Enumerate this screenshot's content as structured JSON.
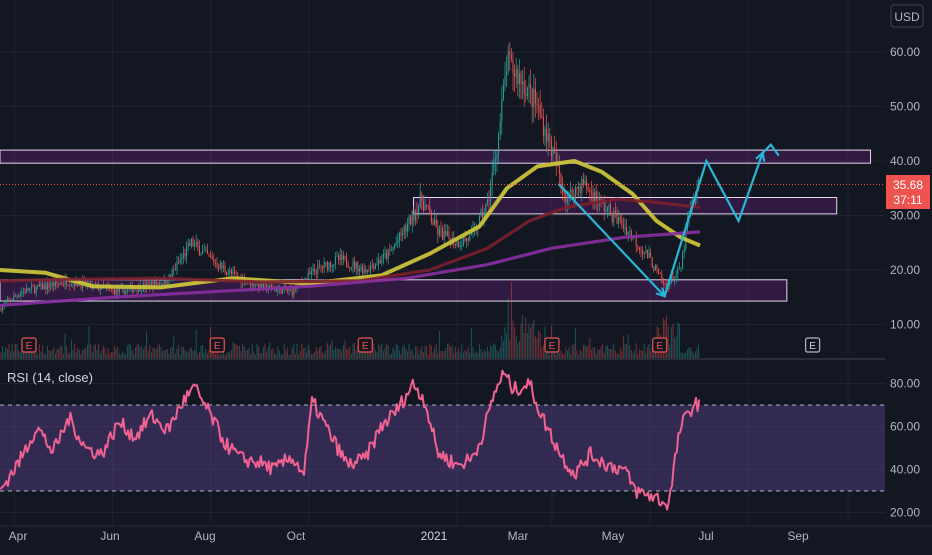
{
  "currency_label": "USD",
  "last_price": "35.68",
  "countdown": "37:11",
  "rsi_label": "RSI (14, close)",
  "earnings_marker": "E",
  "colors": {
    "background": "#131722",
    "up": "#26a69a",
    "down": "#ef5350",
    "zone_border": "#e8d8f0",
    "zone_fill": "rgba(156,39,176,0.22)",
    "ma_yellow": "#c9c23a",
    "ma_darkred": "#7a1f2e",
    "ma_purple": "#8a2fa0",
    "arrow": "#29b6d6",
    "rsi_line": "#f06292",
    "rsi_band": "rgba(126,87,194,0.30)",
    "axis_text": "#b2b5be"
  },
  "chart_data": [
    {
      "type": "candlestick",
      "ylabel": "USD",
      "ylim": [
        5,
        68
      ],
      "y_ticks": [
        "10.00",
        "20.00",
        "30.00",
        "40.00",
        "50.00",
        "60.00"
      ],
      "x_ticks": [
        "Apr",
        "Jun",
        "Aug",
        "Oct",
        "2021",
        "Mar",
        "May",
        "Jul",
        "Sep"
      ],
      "price_points": [
        [
          "2020-03-23",
          13
        ],
        [
          "2020-04-05",
          16
        ],
        [
          "2020-04-20",
          17
        ],
        [
          "2020-05-05",
          18
        ],
        [
          "2020-05-20",
          17
        ],
        [
          "2020-06-05",
          16
        ],
        [
          "2020-06-20",
          17
        ],
        [
          "2020-07-05",
          18
        ],
        [
          "2020-07-20",
          25
        ],
        [
          "2020-08-01",
          22
        ],
        [
          "2020-08-15",
          19
        ],
        [
          "2020-09-01",
          17
        ],
        [
          "2020-09-20",
          16
        ],
        [
          "2020-10-05",
          20
        ],
        [
          "2020-10-20",
          22
        ],
        [
          "2020-11-05",
          20
        ],
        [
          "2020-11-20",
          23
        ],
        [
          "2020-12-01",
          28
        ],
        [
          "2020-12-10",
          33
        ],
        [
          "2020-12-20",
          27
        ],
        [
          "2021-01-01",
          25
        ],
        [
          "2021-01-10",
          26
        ],
        [
          "2021-01-20",
          32
        ],
        [
          "2021-01-27",
          45
        ],
        [
          "2021-02-01",
          58
        ],
        [
          "2021-02-10",
          55
        ],
        [
          "2021-02-20",
          50
        ],
        [
          "2021-03-01",
          42
        ],
        [
          "2021-03-10",
          33
        ],
        [
          "2021-03-20",
          36
        ],
        [
          "2021-04-01",
          32
        ],
        [
          "2021-04-15",
          28
        ],
        [
          "2021-05-01",
          22
        ],
        [
          "2021-05-10",
          17
        ],
        [
          "2021-05-20",
          20
        ],
        [
          "2021-05-25",
          30
        ],
        [
          "2021-06-01",
          36
        ]
      ],
      "last_price": 35.68,
      "zones": [
        {
          "from": "2020-03-23",
          "to": "2021-09-15",
          "low": 39.6,
          "high": 42.0
        },
        {
          "from": "2020-12-05",
          "to": "2021-08-25",
          "low": 30.3,
          "high": 33.3
        },
        {
          "from": "2020-03-23",
          "to": "2021-07-25",
          "low": 14.3,
          "high": 18.2
        }
      ],
      "moving_averages": [
        {
          "color": "#c9c23a",
          "points": [
            [
              "2020-03-23",
              20
            ],
            [
              "2020-04-20",
              19.5
            ],
            [
              "2020-05-20",
              17
            ],
            [
              "2020-07-01",
              16.8
            ],
            [
              "2020-08-15",
              18.5
            ],
            [
              "2020-10-01",
              17.5
            ],
            [
              "2020-11-15",
              19
            ],
            [
              "2020-12-15",
              23
            ],
            [
              "2021-01-15",
              28
            ],
            [
              "2021-02-01",
              35
            ],
            [
              "2021-02-20",
              39
            ],
            [
              "2021-03-15",
              40
            ],
            [
              "2021-04-01",
              38
            ],
            [
              "2021-04-20",
              34
            ],
            [
              "2021-05-05",
              29
            ],
            [
              "2021-05-20",
              26
            ],
            [
              "2021-06-01",
              24.5
            ]
          ]
        },
        {
          "color": "#7a1f2e",
          "points": [
            [
              "2020-03-23",
              18
            ],
            [
              "2020-05-01",
              18.3
            ],
            [
              "2020-07-01",
              18.5
            ],
            [
              "2020-09-01",
              17.8
            ],
            [
              "2020-11-01",
              18
            ],
            [
              "2020-12-15",
              20
            ],
            [
              "2021-01-20",
              24
            ],
            [
              "2021-02-15",
              29
            ],
            [
              "2021-03-10",
              31.5
            ],
            [
              "2021-04-10",
              33
            ],
            [
              "2021-05-01",
              32.5
            ],
            [
              "2021-06-01",
              31.5
            ]
          ]
        },
        {
          "color": "#8a2fa0",
          "points": [
            [
              "2020-03-23",
              13.5
            ],
            [
              "2020-06-01",
              15
            ],
            [
              "2020-08-01",
              16
            ],
            [
              "2020-10-01",
              17
            ],
            [
              "2020-12-01",
              18.5
            ],
            [
              "2021-01-20",
              21
            ],
            [
              "2021-03-01",
              24
            ],
            [
              "2021-04-15",
              26
            ],
            [
              "2021-06-01",
              27
            ]
          ]
        }
      ],
      "drawings": [
        {
          "points": [
            [
              "2021-03-05",
              35.8
            ],
            [
              "2021-05-10",
              15.2
            ]
          ],
          "arrow": true
        },
        {
          "points": [
            [
              "2021-05-10",
              15.2
            ],
            [
              "2021-06-05",
              40
            ],
            [
              "2021-06-25",
              29
            ],
            [
              "2021-07-10",
              41.5
            ]
          ],
          "arrow": true
        },
        {
          "points": [
            [
              "2021-07-10",
              41.5
            ],
            [
              "2021-07-15",
              43
            ],
            [
              "2021-07-20",
              41
            ]
          ],
          "arrow": false
        }
      ],
      "earnings_dates": [
        "2020-04-10",
        "2020-08-05",
        "2020-11-05",
        "2021-03-01",
        "2021-05-07"
      ],
      "future_earnings_date": "2021-08-10"
    },
    {
      "type": "line",
      "title": "RSI (14, close)",
      "ylim": [
        18,
        88
      ],
      "y_ticks": [
        "20.00",
        "40.00",
        "60.00",
        "80.00"
      ],
      "band": [
        30,
        70
      ],
      "points": [
        [
          "2020-03-23",
          30
        ],
        [
          "2020-04-05",
          45
        ],
        [
          "2020-04-15",
          60
        ],
        [
          "2020-04-25",
          48
        ],
        [
          "2020-05-05",
          64
        ],
        [
          "2020-05-15",
          50
        ],
        [
          "2020-05-25",
          47
        ],
        [
          "2020-06-05",
          62
        ],
        [
          "2020-06-15",
          55
        ],
        [
          "2020-06-25",
          65
        ],
        [
          "2020-07-05",
          58
        ],
        [
          "2020-07-15",
          72
        ],
        [
          "2020-07-22",
          78
        ],
        [
          "2020-08-01",
          65
        ],
        [
          "2020-08-10",
          52
        ],
        [
          "2020-08-20",
          45
        ],
        [
          "2020-09-01",
          43
        ],
        [
          "2020-09-10",
          40
        ],
        [
          "2020-09-20",
          46
        ],
        [
          "2020-09-28",
          38
        ],
        [
          "2020-10-03",
          72
        ],
        [
          "2020-10-15",
          55
        ],
        [
          "2020-10-25",
          42
        ],
        [
          "2020-11-05",
          45
        ],
        [
          "2020-11-15",
          60
        ],
        [
          "2020-11-25",
          68
        ],
        [
          "2020-12-05",
          80
        ],
        [
          "2020-12-12",
          72
        ],
        [
          "2020-12-20",
          48
        ],
        [
          "2021-01-01",
          42
        ],
        [
          "2021-01-10",
          45
        ],
        [
          "2021-01-15",
          52
        ],
        [
          "2021-01-25",
          77
        ],
        [
          "2021-01-30",
          85
        ],
        [
          "2021-02-05",
          77
        ],
        [
          "2021-02-15",
          80
        ],
        [
          "2021-02-22",
          66
        ],
        [
          "2021-03-01",
          55
        ],
        [
          "2021-03-08",
          45
        ],
        [
          "2021-03-15",
          38
        ],
        [
          "2021-03-25",
          47
        ],
        [
          "2021-04-05",
          42
        ],
        [
          "2021-04-15",
          40
        ],
        [
          "2021-04-22",
          30
        ],
        [
          "2021-04-30",
          28
        ],
        [
          "2021-05-05",
          27
        ],
        [
          "2021-05-10",
          24
        ],
        [
          "2021-05-13",
          25
        ],
        [
          "2021-05-16",
          42
        ],
        [
          "2021-05-20",
          60
        ],
        [
          "2021-05-24",
          65
        ],
        [
          "2021-05-28",
          70
        ],
        [
          "2021-06-01",
          71
        ]
      ]
    }
  ]
}
